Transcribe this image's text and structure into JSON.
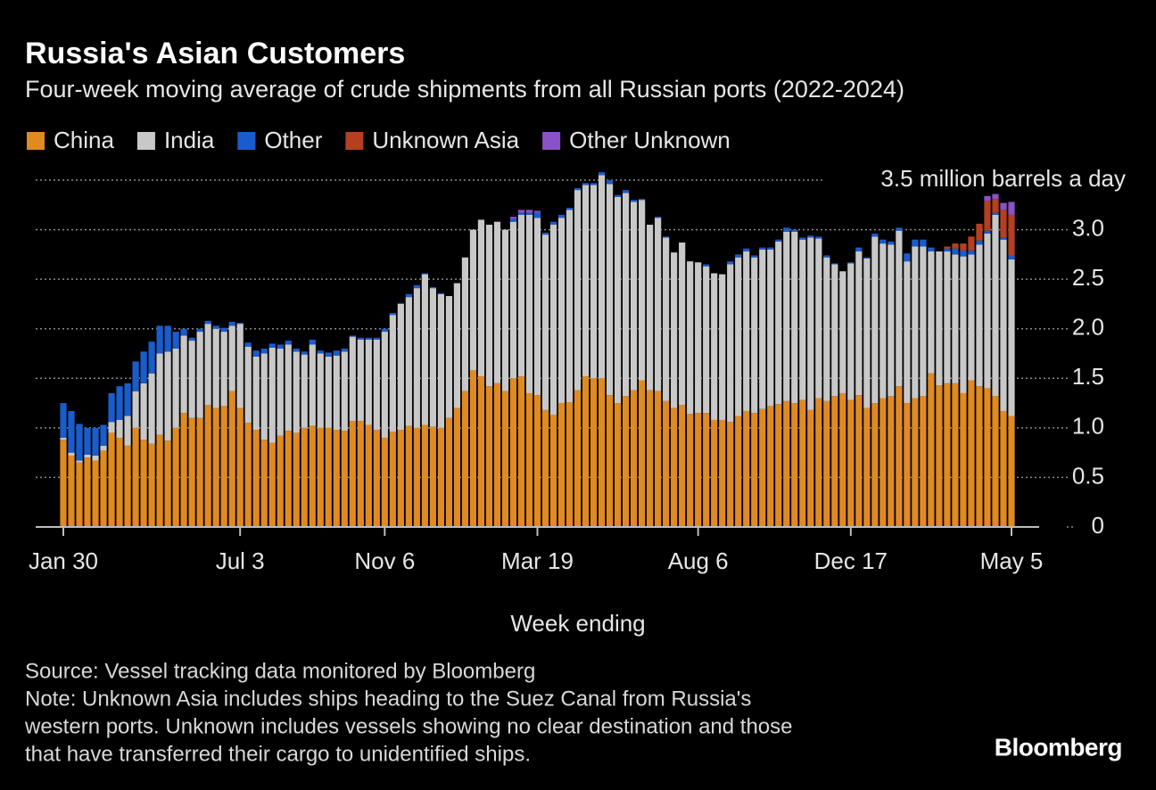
{
  "chart_data": {
    "type": "stacked_bar",
    "title": "Russia's Asian Customers",
    "subtitle": "Four-week moving average of crude shipments from all Russian ports (2022-2024)",
    "x_label": "Week ending",
    "notes": [
      "Source: Vessel tracking data monitored by Bloomberg",
      "Note: Unknown Asia includes ships heading to the Suez Canal from Russia's",
      "western ports. Unknown includes vessels showing no clear destination and those",
      "that have transferred their cargo to unidentified ships."
    ],
    "brand": "Bloomberg",
    "categories": [
      "Jan 30",
      null,
      null,
      null,
      null,
      null,
      null,
      null,
      null,
      null,
      null,
      null,
      null,
      null,
      null,
      null,
      null,
      null,
      null,
      null,
      null,
      null,
      "Jul 3",
      null,
      null,
      null,
      null,
      null,
      null,
      null,
      null,
      null,
      null,
      null,
      null,
      null,
      null,
      null,
      null,
      null,
      "Nov 6",
      null,
      null,
      null,
      null,
      null,
      null,
      null,
      null,
      null,
      null,
      null,
      null,
      null,
      null,
      null,
      null,
      null,
      null,
      "Mar 19",
      null,
      null,
      null,
      null,
      null,
      null,
      null,
      null,
      null,
      null,
      null,
      null,
      null,
      null,
      null,
      null,
      null,
      null,
      null,
      "Aug 6",
      null,
      null,
      null,
      null,
      null,
      null,
      null,
      null,
      null,
      null,
      null,
      null,
      null,
      null,
      null,
      null,
      null,
      null,
      "Dec 17",
      null,
      null,
      null,
      null,
      null,
      null,
      null,
      null,
      null,
      null,
      null,
      null,
      null,
      null,
      null,
      null,
      null,
      null,
      null,
      "May 5"
    ],
    "ylim": [
      0,
      3.5
    ],
    "yticks": [
      0,
      0.5,
      {
        "value": 1,
        "label": "1.0"
      },
      1.5,
      {
        "value": 2,
        "label": "2.0"
      },
      2.5,
      {
        "value": 3,
        "label": "3.0"
      },
      {
        "value": 3.5,
        "label": "3.5 million barrels a day"
      }
    ],
    "grid": true,
    "series": [
      {
        "name": "China",
        "color": "#e08a22",
        "values": [
          0.88,
          0.72,
          0.65,
          0.7,
          0.67,
          0.77,
          0.95,
          0.9,
          0.82,
          1.0,
          0.88,
          0.84,
          0.93,
          0.87,
          1.0,
          1.15,
          1.1,
          1.1,
          1.23,
          1.2,
          1.22,
          1.37,
          1.2,
          1.05,
          0.98,
          0.88,
          0.85,
          0.92,
          0.97,
          0.95,
          1.0,
          1.02,
          1.0,
          1.0,
          0.98,
          0.97,
          1.07,
          1.07,
          1.03,
          0.98,
          0.9,
          0.96,
          0.98,
          1.02,
          1.0,
          1.03,
          1.01,
          1.0,
          1.1,
          1.2,
          1.37,
          1.58,
          1.52,
          1.42,
          1.45,
          1.37,
          1.5,
          1.52,
          1.35,
          1.33,
          1.18,
          1.13,
          1.25,
          1.26,
          1.38,
          1.52,
          1.5,
          1.5,
          1.33,
          1.25,
          1.32,
          1.38,
          1.48,
          1.38,
          1.37,
          1.27,
          1.2,
          1.23,
          1.14,
          1.15,
          1.15,
          1.08,
          1.08,
          1.06,
          1.12,
          1.17,
          1.15,
          1.19,
          1.22,
          1.24,
          1.27,
          1.25,
          1.28,
          1.18,
          1.3,
          1.27,
          1.32,
          1.35,
          1.28,
          1.33,
          1.2,
          1.25,
          1.3,
          1.32,
          1.42,
          1.25,
          1.3,
          1.32,
          1.55,
          1.43,
          1.45,
          1.45,
          1.35,
          1.48,
          1.42,
          1.4,
          1.32,
          1.17,
          1.12
        ]
      },
      {
        "name": "India",
        "color": "#c8c8c8",
        "values": [
          0.02,
          0.03,
          0.02,
          0.03,
          0.05,
          0.05,
          0.11,
          0.18,
          0.3,
          0.37,
          0.57,
          0.71,
          0.82,
          0.9,
          0.8,
          0.78,
          0.78,
          0.87,
          0.82,
          0.8,
          0.75,
          0.66,
          0.85,
          0.77,
          0.74,
          0.87,
          0.96,
          0.88,
          0.87,
          0.82,
          0.74,
          0.82,
          0.75,
          0.72,
          0.75,
          0.8,
          0.85,
          0.82,
          0.86,
          0.91,
          1.07,
          1.18,
          1.27,
          1.3,
          1.41,
          1.52,
          1.4,
          1.35,
          1.23,
          1.26,
          1.35,
          1.42,
          1.58,
          1.63,
          1.63,
          1.63,
          1.58,
          1.63,
          1.8,
          1.79,
          1.77,
          1.92,
          1.87,
          1.94,
          2.02,
          1.93,
          1.95,
          2.05,
          2.13,
          2.08,
          2.05,
          1.9,
          1.82,
          1.67,
          1.75,
          1.65,
          1.57,
          1.64,
          1.54,
          1.52,
          1.48,
          1.48,
          1.47,
          1.59,
          1.6,
          1.61,
          1.57,
          1.61,
          1.58,
          1.64,
          1.71,
          1.73,
          1.62,
          1.74,
          1.61,
          1.45,
          1.33,
          1.23,
          1.38,
          1.45,
          1.51,
          1.68,
          1.56,
          1.53,
          1.57,
          1.43,
          1.53,
          1.51,
          1.23,
          1.35,
          1.33,
          1.3,
          1.38,
          1.27,
          1.43,
          1.56,
          1.83,
          1.73,
          1.58
        ]
      },
      {
        "name": "Other",
        "color": "#1a5ccc",
        "values": [
          0.35,
          0.42,
          0.37,
          0.27,
          0.28,
          0.21,
          0.29,
          0.34,
          0.33,
          0.3,
          0.32,
          0.32,
          0.28,
          0.26,
          0.17,
          0.07,
          0.03,
          0.03,
          0.03,
          0.03,
          0.04,
          0.04,
          0.01,
          0.04,
          0.06,
          0.05,
          0.04,
          0.04,
          0.04,
          0.03,
          0.03,
          0.05,
          0.03,
          0.04,
          0.05,
          0.03,
          0.01,
          0.02,
          0.02,
          0.02,
          0.03,
          0.02,
          0.01,
          0.03,
          0.03,
          0.01,
          0.01,
          0.01,
          0,
          0,
          0,
          0,
          0,
          0,
          0,
          0,
          0.03,
          0.02,
          0.02,
          0.05,
          0.02,
          0.03,
          0.03,
          0.02,
          0.02,
          0.02,
          0.02,
          0.03,
          0.04,
          0.02,
          0.03,
          0.02,
          0.01,
          0,
          0.01,
          0.01,
          0,
          0,
          0,
          0,
          0.02,
          0,
          0,
          0.03,
          0.03,
          0.03,
          0.02,
          0.02,
          0.02,
          0.02,
          0.04,
          0.02,
          0.02,
          0.02,
          0.02,
          0.02,
          0.01,
          0,
          0.01,
          0.04,
          0.01,
          0.03,
          0.04,
          0.03,
          0.03,
          0.08,
          0.07,
          0.07,
          0.04,
          0,
          0.03,
          0.06,
          0.06,
          0.04,
          0.04,
          0.03,
          0.02,
          0.02,
          0.04
        ]
      },
      {
        "name": "Unknown Asia",
        "color": "#b5401f",
        "values": [
          0,
          0,
          0,
          0,
          0,
          0,
          0,
          0,
          0,
          0,
          0,
          0,
          0,
          0,
          0,
          0,
          0,
          0,
          0,
          0,
          0,
          0,
          0,
          0,
          0,
          0,
          0,
          0,
          0,
          0,
          0,
          0,
          0,
          0,
          0,
          0,
          0,
          0,
          0,
          0,
          0,
          0,
          0,
          0,
          0,
          0,
          0,
          0,
          0,
          0,
          0,
          0,
          0,
          0,
          0,
          0,
          0,
          0,
          0,
          0,
          0,
          0,
          0,
          0,
          0,
          0,
          0,
          0,
          0,
          0,
          0,
          0,
          0,
          0,
          0,
          0,
          0,
          0,
          0,
          0,
          0,
          0,
          0,
          0,
          0,
          0,
          0,
          0,
          0,
          0,
          0,
          0,
          0,
          0,
          0,
          0,
          0,
          0,
          0,
          0,
          0,
          0,
          0,
          0,
          0,
          0,
          0,
          0,
          0,
          0,
          0.02,
          0.05,
          0.07,
          0.14,
          0.17,
          0.3,
          0.14,
          0.28,
          0.41
        ]
      },
      {
        "name": "Other Unknown",
        "color": "#8a52c8",
        "values": [
          0,
          0,
          0,
          0,
          0,
          0,
          0,
          0,
          0,
          0,
          0,
          0,
          0,
          0,
          0,
          0,
          0,
          0,
          0,
          0,
          0,
          0,
          0,
          0,
          0,
          0,
          0,
          0,
          0,
          0,
          0,
          0,
          0,
          0,
          0,
          0,
          0,
          0,
          0,
          0,
          0,
          0,
          0,
          0,
          0,
          0,
          0,
          0,
          0,
          0,
          0,
          0,
          0,
          0,
          0,
          0,
          0.02,
          0.03,
          0.03,
          0.02,
          0,
          0,
          0,
          0,
          0,
          0,
          0,
          0,
          0,
          0,
          0,
          0,
          0,
          0,
          0,
          0,
          0,
          0,
          0,
          0,
          0,
          0,
          0,
          0,
          0,
          0,
          0,
          0,
          0,
          0,
          0,
          0,
          0,
          0,
          0,
          0,
          0,
          0,
          0,
          0,
          0,
          0,
          0,
          0,
          0,
          0,
          0,
          0,
          0,
          0,
          0,
          0,
          0,
          0,
          0,
          0.05,
          0.05,
          0.07,
          0.13
        ]
      }
    ]
  }
}
